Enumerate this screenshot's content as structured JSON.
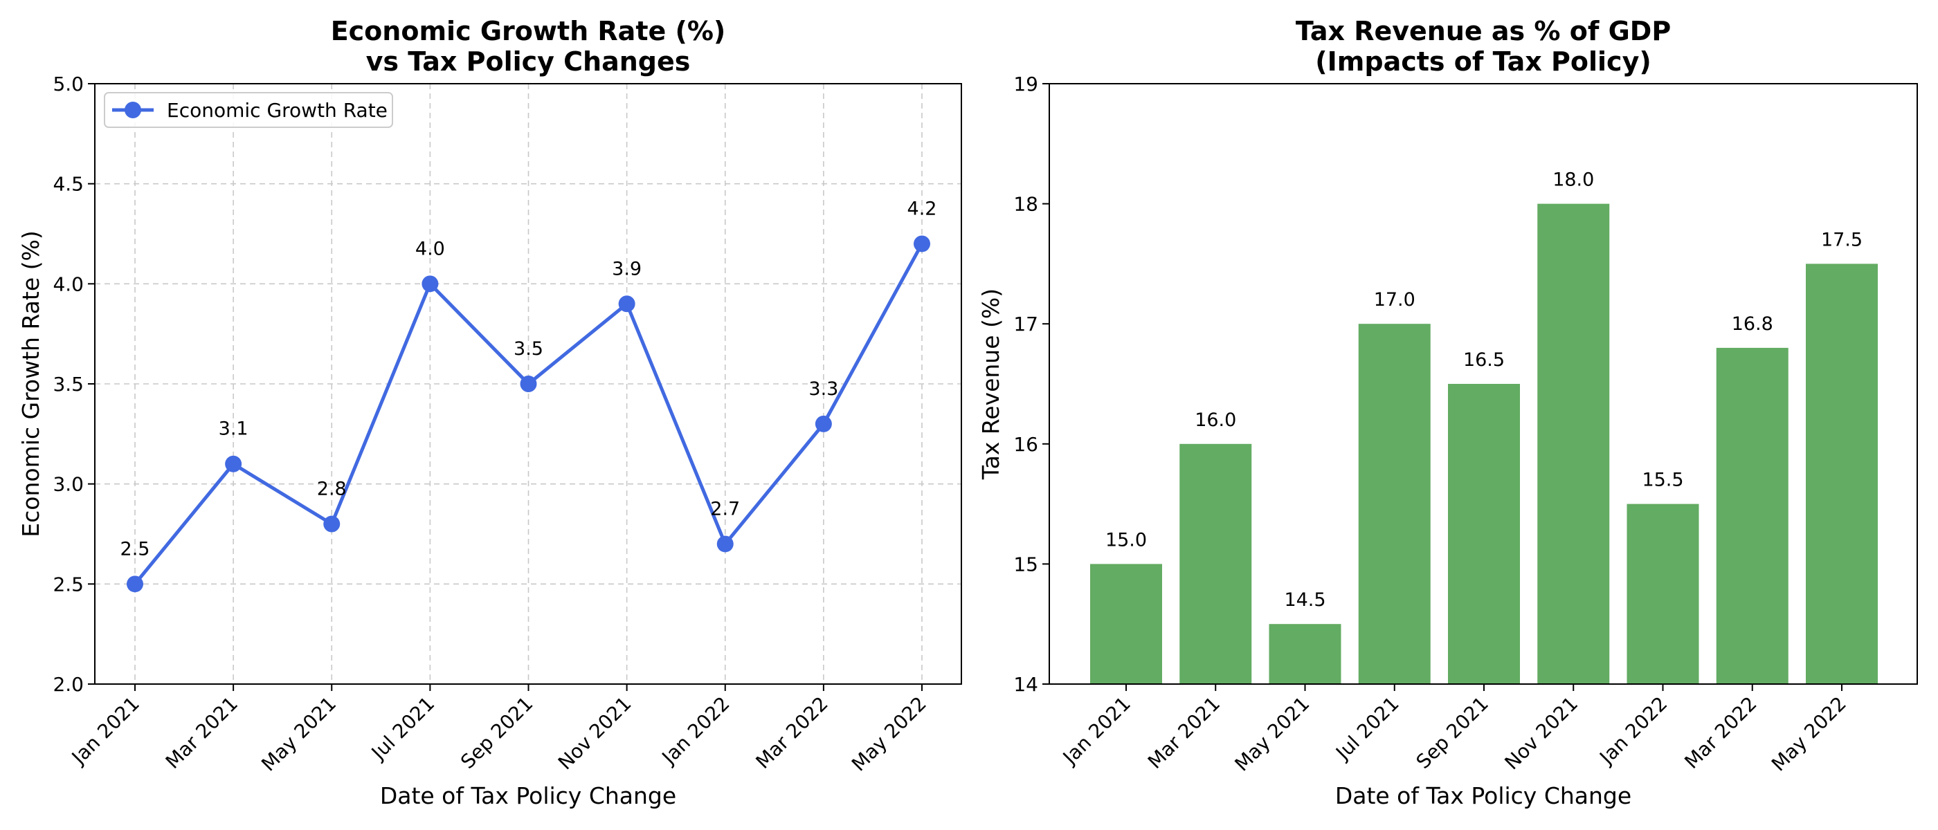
{
  "chart_data": [
    {
      "type": "line",
      "title": [
        "Economic Growth Rate (%)",
        "vs Tax Policy Changes"
      ],
      "xlabel": "Date of Tax Policy Change",
      "ylabel": "Economic Growth Rate (%)",
      "categories": [
        "Jan 2021",
        "Mar 2021",
        "May 2021",
        "Jul 2021",
        "Sep 2021",
        "Nov 2021",
        "Jan 2022",
        "Mar 2022",
        "May 2022"
      ],
      "series": [
        {
          "name": "Economic Growth Rate",
          "values": [
            2.5,
            3.1,
            2.8,
            4.0,
            3.5,
            3.9,
            2.7,
            3.3,
            4.2
          ],
          "labels": [
            "2.5",
            "3.1",
            "2.8",
            "4.0",
            "3.5",
            "3.9",
            "2.7",
            "3.3",
            "4.2"
          ],
          "color": "#4169e1"
        }
      ],
      "ylim": [
        2.0,
        5.0
      ],
      "yticks": [
        "2.0",
        "2.5",
        "3.0",
        "3.5",
        "4.0",
        "4.5",
        "5.0"
      ],
      "grid": true,
      "legend_position": "top-left"
    },
    {
      "type": "bar",
      "title": [
        "Tax Revenue as % of GDP",
        "(Impacts of Tax Policy)"
      ],
      "xlabel": "Date of Tax Policy Change",
      "ylabel": "Tax Revenue (%)",
      "categories": [
        "Jan 2021",
        "Mar 2021",
        "May 2021",
        "Jul 2021",
        "Sep 2021",
        "Nov 2021",
        "Jan 2022",
        "Mar 2022",
        "May 2022"
      ],
      "values": [
        15.0,
        16.0,
        14.5,
        17.0,
        16.5,
        18.0,
        15.5,
        16.8,
        17.5
      ],
      "labels": [
        "15.0",
        "16.0",
        "14.5",
        "17.0",
        "16.5",
        "18.0",
        "15.5",
        "16.8",
        "17.5"
      ],
      "color": "#63ac63",
      "ylim": [
        14,
        19
      ],
      "yticks": [
        "14",
        "15",
        "16",
        "17",
        "18",
        "19"
      ],
      "grid": false
    }
  ]
}
